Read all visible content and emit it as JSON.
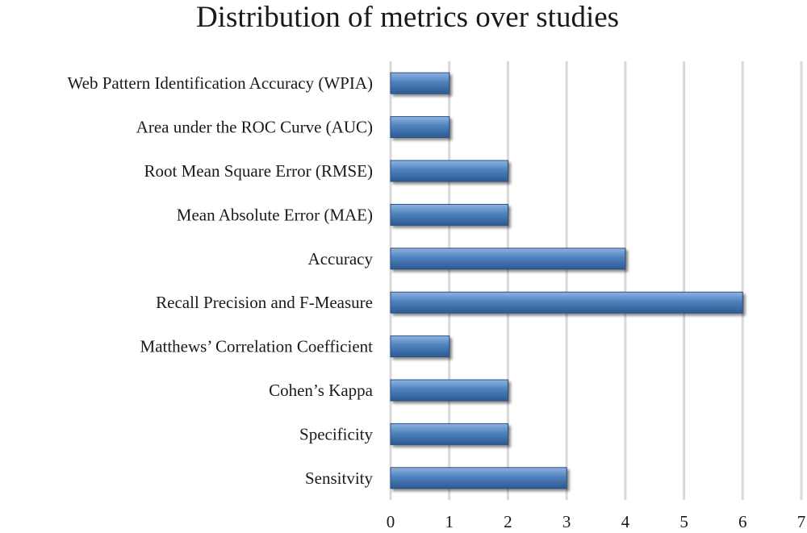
{
  "chart_data": {
    "type": "bar",
    "orientation": "horizontal",
    "title": "Distribution of metrics over studies",
    "xlabel": "",
    "ylabel": "",
    "categories": [
      "Web Pattern Identification Accuracy (WPIA)",
      "Area under the ROC Curve (AUC)",
      "Root Mean Square Error (RMSE)",
      "Mean Absolute Error (MAE)",
      "Accuracy",
      "Recall Precision and F-Measure",
      "Matthews’ Correlation Coefficient",
      "Cohen’s Kappa",
      "Specificity",
      "Sensitvity"
    ],
    "values": [
      1,
      1,
      2,
      2,
      4,
      6,
      1,
      2,
      2,
      3
    ],
    "xlim": [
      0,
      7
    ],
    "xticks": [
      "0",
      "1",
      "2",
      "3",
      "4",
      "5",
      "6",
      "7"
    ],
    "grid": true,
    "legend": "none",
    "bar_color": "#4f81bd"
  }
}
